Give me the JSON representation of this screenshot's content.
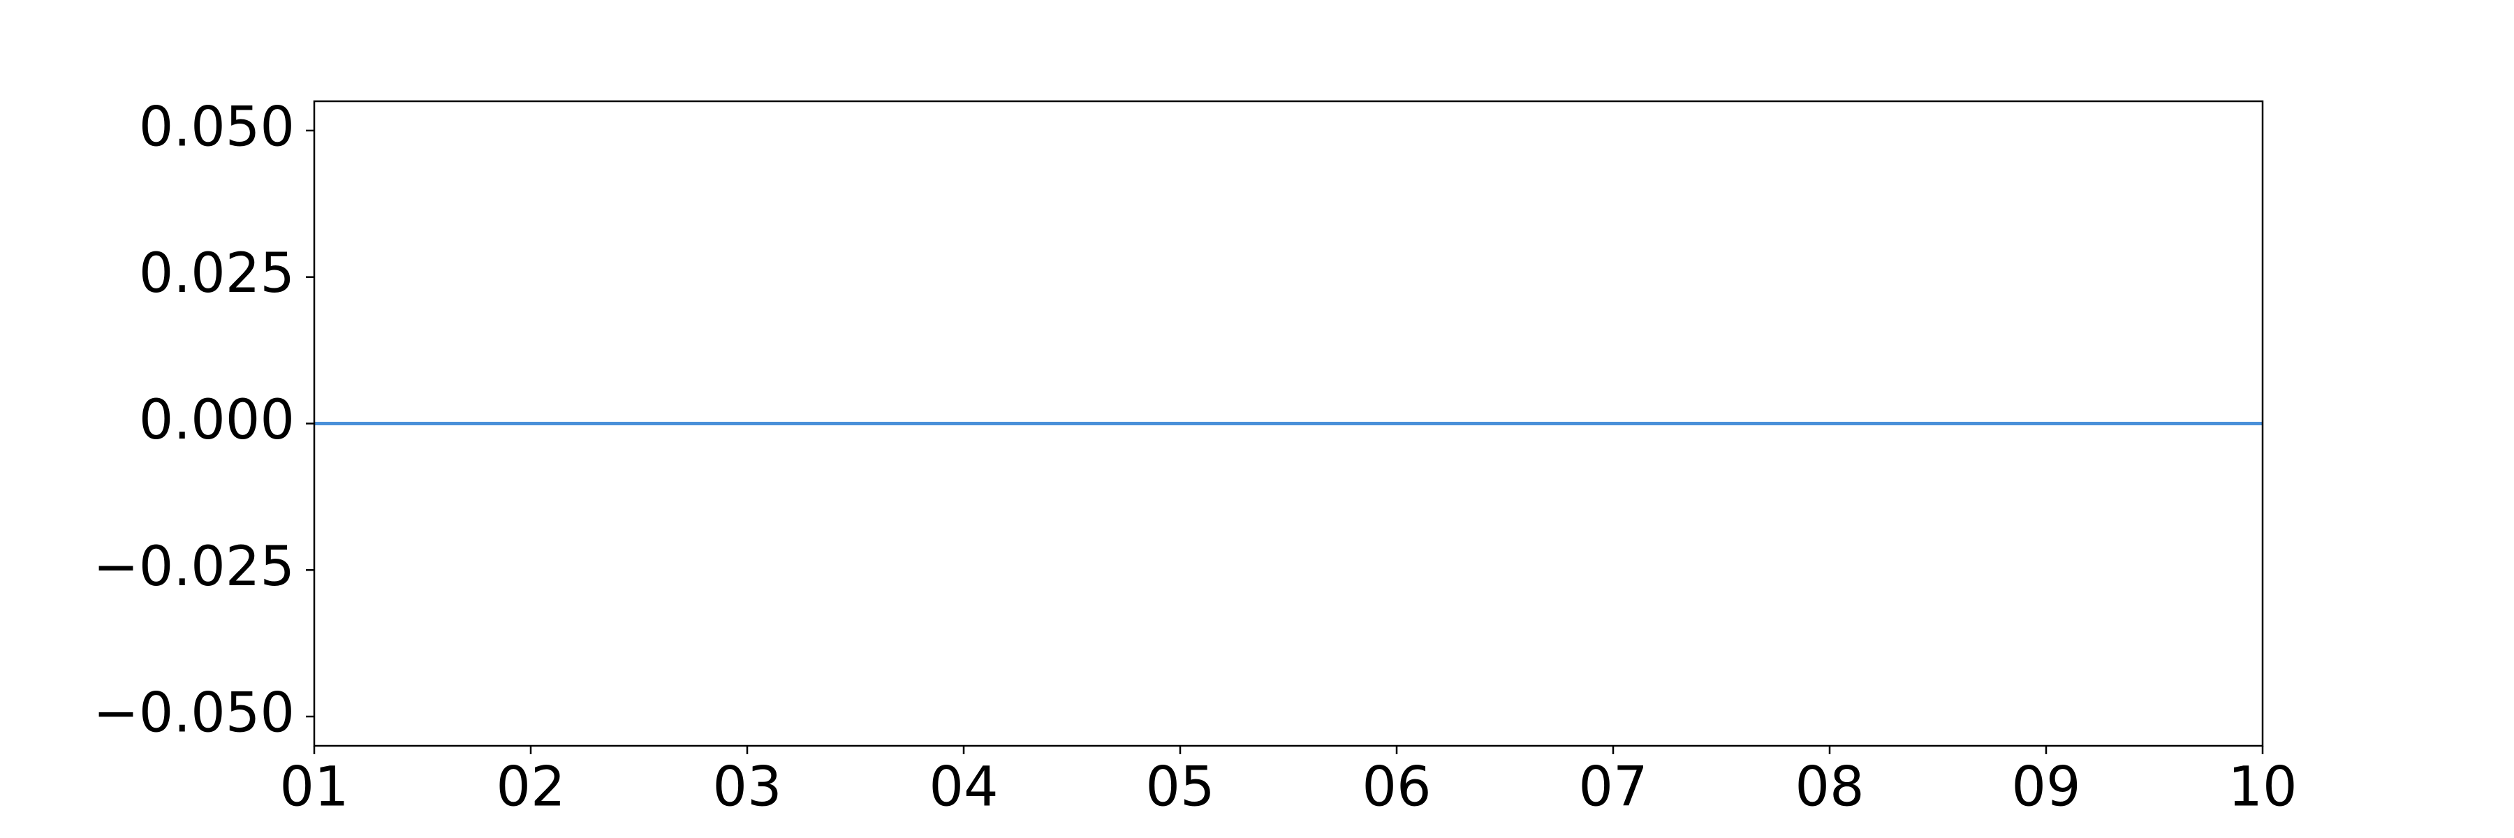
{
  "chart_data": {
    "type": "line",
    "x": [
      1,
      2,
      3,
      4,
      5,
      6,
      7,
      8,
      9,
      10
    ],
    "series": [
      {
        "color": "#4a90d9",
        "values": [
          0,
          0,
          0,
          0,
          0,
          0,
          0,
          0,
          0,
          0
        ]
      }
    ],
    "xlim": [
      1,
      10
    ],
    "xticks": [
      {
        "value": 1,
        "label": "01"
      },
      {
        "value": 2,
        "label": "02"
      },
      {
        "value": 3,
        "label": "03"
      },
      {
        "value": 4,
        "label": "04"
      },
      {
        "value": 5,
        "label": "05"
      },
      {
        "value": 6,
        "label": "06"
      },
      {
        "value": 7,
        "label": "07"
      },
      {
        "value": 8,
        "label": "08"
      },
      {
        "value": 9,
        "label": "09"
      },
      {
        "value": 10,
        "label": "10"
      }
    ],
    "ylim": [
      -0.055,
      0.055
    ],
    "yticks": [
      {
        "value": -0.05,
        "label": "−0.050"
      },
      {
        "value": -0.025,
        "label": "−0.025"
      },
      {
        "value": 0,
        "label": "0.000"
      },
      {
        "value": 0.025,
        "label": "0.025"
      },
      {
        "value": 0.05,
        "label": "0.050"
      }
    ],
    "grid": false
  }
}
